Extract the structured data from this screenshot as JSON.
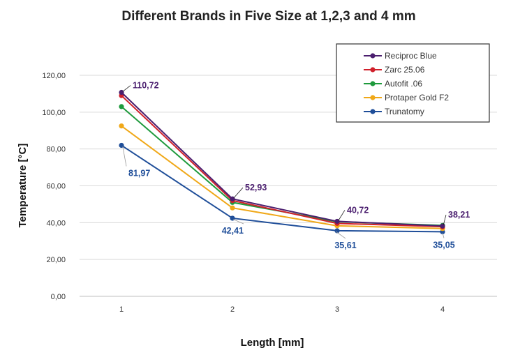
{
  "chart_data": {
    "type": "line",
    "title": "Different Brands in Five Size at 1,2,3 and 4 mm",
    "xlabel": "Length [mm]",
    "ylabel": "Temperature [°C]",
    "x": [
      1,
      2,
      3,
      4
    ],
    "x_tick_labels": [
      "1",
      "2",
      "3",
      "4"
    ],
    "ylim": [
      0,
      120
    ],
    "y_ticks": [
      0,
      20,
      40,
      60,
      80,
      100,
      120
    ],
    "y_tick_labels": [
      "0,00",
      "20,00",
      "40,00",
      "60,00",
      "80,00",
      "100,00",
      "120,00"
    ],
    "grid": "horizontal",
    "legend_position": "top-right",
    "series": [
      {
        "name": "Reciproc Blue",
        "color": "#4b1f6f",
        "values": [
          110.72,
          52.93,
          40.72,
          38.21
        ]
      },
      {
        "name": "Zarc 25.06",
        "color": "#d0202b",
        "values": [
          109.0,
          52.0,
          39.6,
          37.8
        ]
      },
      {
        "name": "Autofit .06",
        "color": "#1e9a3c",
        "values": [
          103.0,
          51.0,
          40.5,
          38.5
        ]
      },
      {
        "name": "Protaper Gold F2",
        "color": "#f0a818",
        "values": [
          92.5,
          48.0,
          38.3,
          36.8
        ]
      },
      {
        "name": "Trunatomy",
        "color": "#1f4e99",
        "values": [
          81.97,
          42.41,
          35.61,
          35.05
        ]
      }
    ],
    "data_labels": [
      {
        "series": "Reciproc Blue",
        "x": 1,
        "value": 110.72,
        "text": "110,72",
        "color": "#4b1f6f"
      },
      {
        "series": "Reciproc Blue",
        "x": 2,
        "value": 52.93,
        "text": "52,93",
        "color": "#4b1f6f"
      },
      {
        "series": "Reciproc Blue",
        "x": 3,
        "value": 40.72,
        "text": "40,72",
        "color": "#4b1f6f"
      },
      {
        "series": "Reciproc Blue",
        "x": 4,
        "value": 38.21,
        "text": "38,21",
        "color": "#4b1f6f"
      },
      {
        "series": "Trunatomy",
        "x": 1,
        "value": 81.97,
        "text": "81,97",
        "color": "#1f4e99"
      },
      {
        "series": "Trunatomy",
        "x": 2,
        "value": 42.41,
        "text": "42,41",
        "color": "#1f4e99"
      },
      {
        "series": "Trunatomy",
        "x": 3,
        "value": 35.61,
        "text": "35,61",
        "color": "#1f4e99"
      },
      {
        "series": "Trunatomy",
        "x": 4,
        "value": 35.05,
        "text": "35,05",
        "color": "#1f4e99"
      }
    ]
  }
}
